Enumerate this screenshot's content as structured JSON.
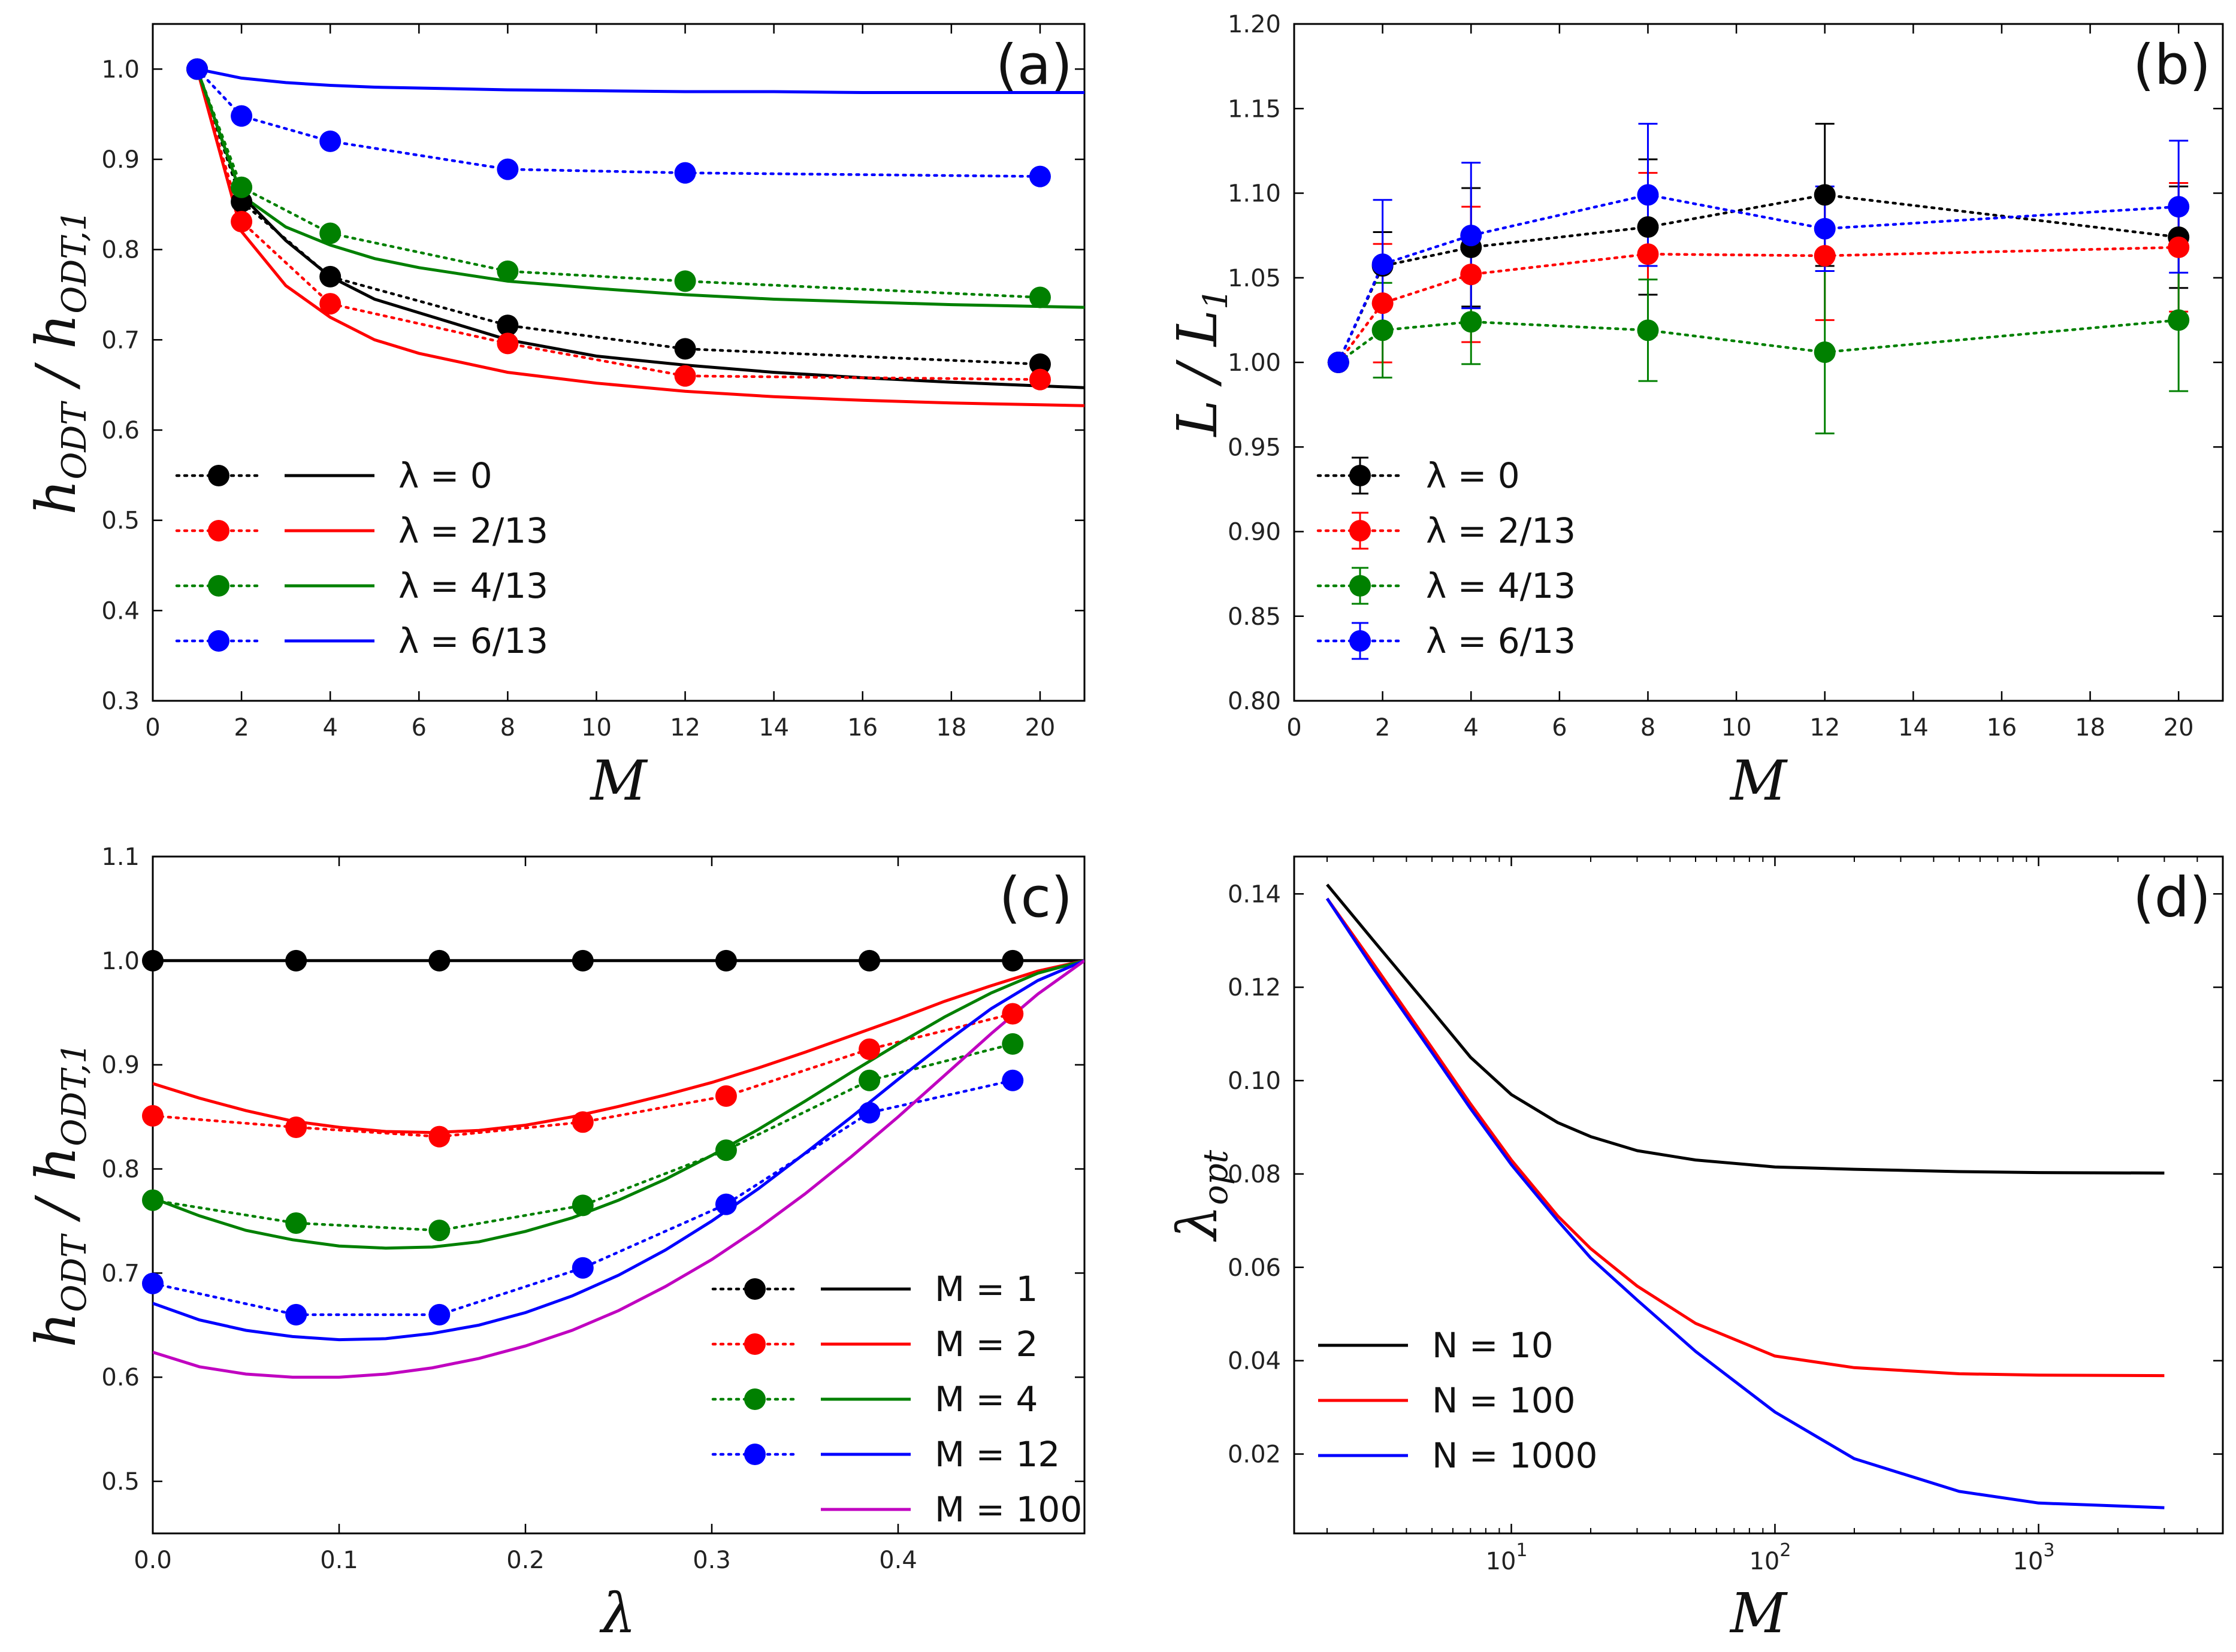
{
  "chart_data": [
    {
      "id": "a",
      "type": "line",
      "panel_label": "(a)",
      "xlabel": "M",
      "ylabel": "h_ODT / h_ODT,1",
      "xlim": [
        0,
        21
      ],
      "ylim": [
        0.3,
        1.05
      ],
      "xticks": [
        0,
        2,
        4,
        6,
        8,
        10,
        12,
        14,
        16,
        18,
        20
      ],
      "yticks": [
        0.3,
        0.4,
        0.5,
        0.6,
        0.7,
        0.8,
        0.9,
        1.0
      ],
      "legend_position": "bottom-left",
      "series": [
        {
          "name": "λ = 0",
          "color": "#000000",
          "points": {
            "x": [
              1,
              2,
              4,
              8,
              12,
              20
            ],
            "y": [
              1.0,
              0.853,
              0.77,
              0.716,
              0.69,
              0.673
            ]
          },
          "curve": {
            "x": [
              1,
              2,
              3,
              4,
              5,
              6,
              8,
              10,
              12,
              14,
              16,
              18,
              20,
              21
            ],
            "y": [
              1.0,
              0.86,
              0.81,
              0.77,
              0.745,
              0.73,
              0.7,
              0.682,
              0.672,
              0.664,
              0.658,
              0.653,
              0.649,
              0.647
            ]
          }
        },
        {
          "name": "λ = 2/13",
          "color": "#ff0000",
          "points": {
            "x": [
              1,
              2,
              4,
              8,
              12,
              20
            ],
            "y": [
              1.0,
              0.831,
              0.74,
              0.696,
              0.66,
              0.656
            ]
          },
          "curve": {
            "x": [
              1,
              2,
              3,
              4,
              5,
              6,
              8,
              10,
              12,
              14,
              16,
              18,
              20,
              21
            ],
            "y": [
              1.0,
              0.82,
              0.76,
              0.725,
              0.7,
              0.685,
              0.664,
              0.652,
              0.643,
              0.637,
              0.633,
              0.63,
              0.628,
              0.627
            ]
          }
        },
        {
          "name": "λ = 4/13",
          "color": "#008000",
          "points": {
            "x": [
              1,
              2,
              4,
              8,
              12,
              20
            ],
            "y": [
              1.0,
              0.869,
              0.818,
              0.776,
              0.765,
              0.747
            ]
          },
          "curve": {
            "x": [
              1,
              2,
              3,
              4,
              5,
              6,
              8,
              10,
              12,
              14,
              16,
              18,
              20,
              21
            ],
            "y": [
              1.0,
              0.86,
              0.825,
              0.805,
              0.79,
              0.78,
              0.765,
              0.757,
              0.75,
              0.745,
              0.742,
              0.739,
              0.737,
              0.736
            ]
          }
        },
        {
          "name": "λ = 6/13",
          "color": "#0000ff",
          "points": {
            "x": [
              1,
              2,
              4,
              8,
              12,
              20
            ],
            "y": [
              1.0,
              0.948,
              0.92,
              0.889,
              0.885,
              0.881
            ]
          },
          "curve": {
            "x": [
              1,
              2,
              3,
              4,
              5,
              6,
              8,
              10,
              12,
              14,
              16,
              18,
              20,
              21
            ],
            "y": [
              1.0,
              0.99,
              0.985,
              0.982,
              0.98,
              0.979,
              0.977,
              0.976,
              0.975,
              0.975,
              0.974,
              0.974,
              0.974,
              0.974
            ]
          }
        }
      ]
    },
    {
      "id": "b",
      "type": "line",
      "panel_label": "(b)",
      "xlabel": "M",
      "ylabel": "L / L_1",
      "xlim": [
        0,
        21
      ],
      "ylim": [
        0.8,
        1.2
      ],
      "xticks": [
        0,
        2,
        4,
        6,
        8,
        10,
        12,
        14,
        16,
        18,
        20
      ],
      "yticks": [
        0.8,
        0.85,
        0.9,
        0.95,
        1.0,
        1.05,
        1.1,
        1.15,
        1.2
      ],
      "legend_position": "bottom-left",
      "series": [
        {
          "name": "λ = 0",
          "color": "#000000",
          "x": [
            1,
            2,
            4,
            8,
            12,
            20
          ],
          "y": [
            1.0,
            1.057,
            1.068,
            1.08,
            1.099,
            1.074
          ],
          "err": [
            0.0,
            0.02,
            0.035,
            0.04,
            0.042,
            0.03
          ]
        },
        {
          "name": "λ = 2/13",
          "color": "#ff0000",
          "x": [
            1,
            2,
            4,
            8,
            12,
            20
          ],
          "y": [
            1.0,
            1.035,
            1.052,
            1.064,
            1.063,
            1.068
          ],
          "err": [
            0.0,
            0.035,
            0.04,
            0.048,
            0.038,
            0.038
          ]
        },
        {
          "name": "λ = 4/13",
          "color": "#008000",
          "x": [
            1,
            2,
            4,
            8,
            12,
            20
          ],
          "y": [
            1.0,
            1.019,
            1.024,
            1.019,
            1.006,
            1.025
          ],
          "err": [
            0.0,
            0.028,
            0.025,
            0.03,
            0.048,
            0.042
          ]
        },
        {
          "name": "λ = 6/13",
          "color": "#0000ff",
          "x": [
            1,
            2,
            4,
            8,
            12,
            20
          ],
          "y": [
            1.0,
            1.058,
            1.075,
            1.099,
            1.079,
            1.092
          ],
          "err": [
            0.0,
            0.038,
            0.043,
            0.042,
            0.025,
            0.039
          ]
        }
      ]
    },
    {
      "id": "c",
      "type": "line",
      "panel_label": "(c)",
      "xlabel": "λ",
      "ylabel": "h_ODT / h_ODT,1",
      "xlim": [
        0,
        0.5
      ],
      "ylim": [
        0.45,
        1.1
      ],
      "xticks": [
        0.0,
        0.1,
        0.2,
        0.3,
        0.4
      ],
      "yticks": [
        0.5,
        0.6,
        0.7,
        0.8,
        0.9,
        1.0,
        1.1
      ],
      "legend_position": "bottom-right",
      "series": [
        {
          "name": "M = 1",
          "color": "#000000",
          "points": {
            "x": [
              0,
              0.0769,
              0.1538,
              0.2308,
              0.3077,
              0.3846,
              0.4615
            ],
            "y": [
              1.0,
              1.0,
              1.0,
              1.0,
              1.0,
              1.0,
              1.0
            ]
          },
          "curve": {
            "x": [
              0,
              0.1,
              0.2,
              0.3,
              0.4,
              0.5
            ],
            "y": [
              1.0,
              1.0,
              1.0,
              1.0,
              1.0,
              1.0
            ]
          }
        },
        {
          "name": "M = 2",
          "color": "#ff0000",
          "points": {
            "x": [
              0,
              0.0769,
              0.1538,
              0.2308,
              0.3077,
              0.3846,
              0.4615
            ],
            "y": [
              0.851,
              0.84,
              0.831,
              0.845,
              0.87,
              0.915,
              0.949
            ]
          },
          "curve": {
            "x": [
              0,
              0.025,
              0.05,
              0.075,
              0.1,
              0.125,
              0.15,
              0.175,
              0.2,
              0.225,
              0.25,
              0.275,
              0.3,
              0.325,
              0.35,
              0.375,
              0.4,
              0.425,
              0.45,
              0.475,
              0.5
            ],
            "y": [
              0.882,
              0.868,
              0.856,
              0.846,
              0.84,
              0.836,
              0.835,
              0.837,
              0.842,
              0.85,
              0.86,
              0.871,
              0.883,
              0.897,
              0.912,
              0.928,
              0.944,
              0.961,
              0.976,
              0.99,
              1.0
            ]
          }
        },
        {
          "name": "M = 4",
          "color": "#008000",
          "points": {
            "x": [
              0,
              0.0769,
              0.1538,
              0.2308,
              0.3077,
              0.3846,
              0.4615
            ],
            "y": [
              0.77,
              0.748,
              0.741,
              0.765,
              0.818,
              0.885,
              0.92
            ]
          },
          "curve": {
            "x": [
              0,
              0.025,
              0.05,
              0.075,
              0.1,
              0.125,
              0.15,
              0.175,
              0.2,
              0.225,
              0.25,
              0.275,
              0.3,
              0.325,
              0.35,
              0.375,
              0.4,
              0.425,
              0.45,
              0.475,
              0.5
            ],
            "y": [
              0.772,
              0.755,
              0.741,
              0.732,
              0.726,
              0.724,
              0.725,
              0.73,
              0.74,
              0.753,
              0.77,
              0.79,
              0.813,
              0.838,
              0.865,
              0.893,
              0.92,
              0.946,
              0.969,
              0.988,
              1.0
            ]
          }
        },
        {
          "name": "M = 12",
          "color": "#0000ff",
          "points": {
            "x": [
              0,
              0.0769,
              0.1538,
              0.2308,
              0.3077,
              0.3846,
              0.4615
            ],
            "y": [
              0.69,
              0.66,
              0.66,
              0.705,
              0.766,
              0.854,
              0.885
            ]
          },
          "curve": {
            "x": [
              0,
              0.025,
              0.05,
              0.075,
              0.1,
              0.125,
              0.15,
              0.175,
              0.2,
              0.225,
              0.25,
              0.275,
              0.3,
              0.325,
              0.35,
              0.375,
              0.4,
              0.425,
              0.45,
              0.475,
              0.5
            ],
            "y": [
              0.671,
              0.655,
              0.645,
              0.639,
              0.636,
              0.637,
              0.642,
              0.65,
              0.662,
              0.678,
              0.698,
              0.722,
              0.75,
              0.781,
              0.815,
              0.85,
              0.886,
              0.921,
              0.954,
              0.981,
              1.0
            ]
          }
        },
        {
          "name": "M = 100",
          "color": "#c000c0",
          "curve": {
            "x": [
              0,
              0.025,
              0.05,
              0.075,
              0.1,
              0.125,
              0.15,
              0.175,
              0.2,
              0.225,
              0.25,
              0.275,
              0.3,
              0.325,
              0.35,
              0.375,
              0.4,
              0.425,
              0.45,
              0.475,
              0.5
            ],
            "y": [
              0.624,
              0.61,
              0.603,
              0.6,
              0.6,
              0.603,
              0.609,
              0.618,
              0.63,
              0.645,
              0.664,
              0.687,
              0.713,
              0.743,
              0.776,
              0.812,
              0.85,
              0.89,
              0.93,
              0.968,
              1.0
            ]
          }
        }
      ]
    },
    {
      "id": "d",
      "type": "line",
      "panel_label": "(d)",
      "xlabel": "M",
      "ylabel": "λ_opt",
      "xscale": "log",
      "xlim": [
        1.5,
        5000
      ],
      "ylim": [
        0.003,
        0.148
      ],
      "xticks": [
        10,
        100,
        1000
      ],
      "xtick_base": "10",
      "xtick_exponents": [
        "1",
        "2",
        "3"
      ],
      "yticks": [
        0.02,
        0.04,
        0.06,
        0.08,
        0.1,
        0.12,
        0.14
      ],
      "legend_position": "bottom-left",
      "series": [
        {
          "name": "N = 10",
          "color": "#000000",
          "x": [
            2,
            3,
            5,
            7,
            10,
            15,
            20,
            30,
            50,
            100,
            200,
            500,
            1000,
            3000
          ],
          "y": [
            0.142,
            0.13,
            0.115,
            0.105,
            0.097,
            0.091,
            0.088,
            0.085,
            0.083,
            0.0815,
            0.081,
            0.0805,
            0.0803,
            0.0802
          ]
        },
        {
          "name": "N = 100",
          "color": "#ff0000",
          "x": [
            2,
            3,
            5,
            7,
            10,
            15,
            20,
            30,
            50,
            100,
            200,
            500,
            1000,
            3000
          ],
          "y": [
            0.139,
            0.125,
            0.107,
            0.095,
            0.083,
            0.071,
            0.064,
            0.056,
            0.048,
            0.041,
            0.0385,
            0.0372,
            0.0369,
            0.0368
          ]
        },
        {
          "name": "N = 1000",
          "color": "#0000ff",
          "x": [
            2,
            3,
            5,
            7,
            10,
            15,
            20,
            30,
            50,
            100,
            200,
            500,
            1000,
            3000
          ],
          "y": [
            0.139,
            0.124,
            0.106,
            0.094,
            0.082,
            0.07,
            0.062,
            0.053,
            0.042,
            0.029,
            0.019,
            0.012,
            0.0095,
            0.0085
          ]
        }
      ]
    }
  ]
}
